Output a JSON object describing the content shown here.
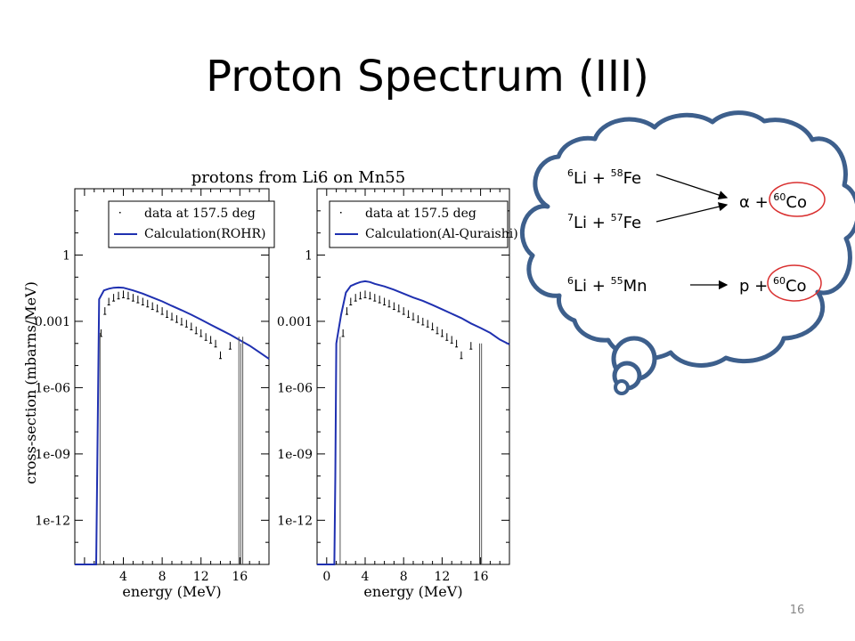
{
  "slide": {
    "title": "Proton Spectrum (III)",
    "page_number": "16"
  },
  "figure": {
    "title": "protons from Li6 on Mn55",
    "ylabel": "cross-section (mbarns/MeV)",
    "xlabel": "energy (MeV)"
  },
  "thought_bubble": {
    "reactions": [
      {
        "nuc1": "Li",
        "mass1": "6",
        "nuc2": "Fe",
        "mass2": "58",
        "plus": "+"
      },
      {
        "nuc1": "Li",
        "mass1": "7",
        "nuc2": "Fe",
        "mass2": "57",
        "plus": "+"
      },
      {
        "nuc1": "Li",
        "mass1": "6",
        "nuc2": "Mn",
        "mass2": "55",
        "plus": "+"
      }
    ],
    "products": [
      {
        "light": "α +",
        "heavy": "Co",
        "mass": "60"
      },
      {
        "light": "p +",
        "heavy": "Co",
        "mass": "60"
      }
    ]
  },
  "chart_data": [
    {
      "type": "scatter",
      "title": "protons from Li6 on Mn55",
      "xlabel": "energy (MeV)",
      "ylabel": "cross-section (mbarns/MeV)",
      "y_scale": "log",
      "xlim": [
        -1,
        19
      ],
      "ylim": [
        1e-14,
        1000
      ],
      "xticks": [
        4,
        8,
        12,
        16
      ],
      "yticks": [
        1,
        0.001,
        1e-06,
        1e-09,
        1e-12
      ],
      "ytick_labels": [
        "1",
        "0.001",
        "1e-06",
        "1e-09",
        "1e-12"
      ],
      "legend": {
        "position": "top-right",
        "entries": [
          "data at 157.5 deg",
          "Calculation(ROHR)"
        ]
      },
      "series": [
        {
          "name": "data at 157.5 deg",
          "kind": "points",
          "x": [
            1.7,
            2.1,
            2.5,
            3.0,
            3.5,
            4.0,
            4.5,
            5.0,
            5.5,
            6.0,
            6.5,
            7.0,
            7.5,
            8.0,
            8.5,
            9.0,
            9.5,
            10.0,
            10.5,
            11.0,
            11.5,
            12.0,
            12.5,
            13.0,
            13.5,
            14.0,
            15.0
          ],
          "y": [
            0.0003,
            0.003,
            0.008,
            0.012,
            0.015,
            0.017,
            0.015,
            0.012,
            0.01,
            0.008,
            0.0065,
            0.005,
            0.004,
            0.003,
            0.0022,
            0.0017,
            0.0013,
            0.001,
            0.0008,
            0.0006,
            0.0004,
            0.0003,
            0.0002,
            0.00015,
            0.0001,
            3e-05,
            8e-05
          ]
        },
        {
          "name": "Calculation(ROHR)",
          "kind": "line",
          "color": "#1f30b0",
          "x": [
            -1,
            1.2,
            1.3,
            1.5,
            2.0,
            2.5,
            3.0,
            3.5,
            4.0,
            5.0,
            6.0,
            7.0,
            8.0,
            9.0,
            10.0,
            11.0,
            12.0,
            13.0,
            14.0,
            15.0,
            16.0,
            17.0,
            18.0,
            19.0
          ],
          "y": [
            1e-14,
            1e-14,
            1e-10,
            0.01,
            0.025,
            0.03,
            0.033,
            0.034,
            0.033,
            0.025,
            0.018,
            0.012,
            0.008,
            0.005,
            0.0032,
            0.002,
            0.0012,
            0.0007,
            0.00042,
            0.00025,
            0.00014,
            8e-05,
            4e-05,
            2e-05
          ]
        },
        {
          "name": "vertical lines",
          "kind": "vlines",
          "color": "#555555",
          "x": [
            1.6,
            15.9,
            16.1,
            16.3
          ],
          "y_top": [
            0.0003,
            0.0002,
            0.0001,
            0.0002
          ]
        }
      ]
    },
    {
      "type": "scatter",
      "title": "",
      "xlabel": "energy (MeV)",
      "ylabel": "",
      "y_scale": "log",
      "xlim": [
        -1,
        19
      ],
      "ylim": [
        1e-14,
        1000
      ],
      "xticks": [
        0,
        4,
        8,
        12,
        16
      ],
      "yticks": [
        1,
        0.001,
        1e-06,
        1e-09,
        1e-12
      ],
      "ytick_labels": [
        "1",
        "0.001",
        "1e-06",
        "1e-09",
        "1e-12"
      ],
      "legend": {
        "position": "top-right",
        "entries": [
          "data at 157.5 deg",
          "Calculation(Al-Quraishi)"
        ]
      },
      "series": [
        {
          "name": "data at 157.5 deg",
          "kind": "points",
          "x": [
            1.7,
            2.1,
            2.5,
            3.0,
            3.5,
            4.0,
            4.5,
            5.0,
            5.5,
            6.0,
            6.5,
            7.0,
            7.5,
            8.0,
            8.5,
            9.0,
            9.5,
            10.0,
            10.5,
            11.0,
            11.5,
            12.0,
            12.5,
            13.0,
            13.5,
            14.0,
            15.0
          ],
          "y": [
            0.0003,
            0.003,
            0.008,
            0.012,
            0.015,
            0.017,
            0.015,
            0.012,
            0.01,
            0.008,
            0.0065,
            0.005,
            0.004,
            0.003,
            0.0022,
            0.0017,
            0.0013,
            0.001,
            0.0008,
            0.0006,
            0.0004,
            0.0003,
            0.0002,
            0.00015,
            0.0001,
            3e-05,
            8e-05
          ]
        },
        {
          "name": "Calculation(Al-Quraishi)",
          "kind": "line",
          "color": "#1f30b0",
          "x": [
            -1,
            0.8,
            0.9,
            1.0,
            1.5,
            2.0,
            2.5,
            3.0,
            3.5,
            4.0,
            4.5,
            5.0,
            6.0,
            7.0,
            8.0,
            9.0,
            10.0,
            11.0,
            12.0,
            13.0,
            14.0,
            15.0,
            16.0,
            17.0,
            18.0,
            19.0
          ],
          "y": [
            1e-14,
            1e-14,
            1e-10,
            0.0001,
            0.002,
            0.02,
            0.04,
            0.05,
            0.06,
            0.065,
            0.06,
            0.05,
            0.038,
            0.027,
            0.018,
            0.012,
            0.0085,
            0.0055,
            0.0035,
            0.0022,
            0.0014,
            0.0008,
            0.0005,
            0.0003,
            0.00015,
            9e-05
          ]
        },
        {
          "name": "vertical lines",
          "kind": "vlines",
          "color": "#555555",
          "x": [
            1.4,
            15.9,
            16.1
          ],
          "y_top": [
            0.0002,
            0.0001,
            0.0001
          ]
        }
      ]
    }
  ]
}
